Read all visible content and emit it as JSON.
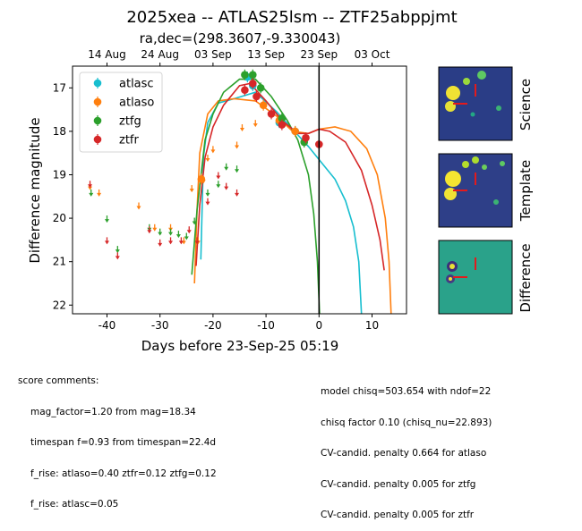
{
  "title": "2025xea -- ATLAS25lsm -- ZTF25abppjmt",
  "top_axis_label": "ra,dec=(298.3607,-9.330043)",
  "top_ticks": [
    {
      "label": "14 Aug",
      "x": -40
    },
    {
      "label": "24 Aug",
      "x": -30
    },
    {
      "label": "03 Sep",
      "x": -20
    },
    {
      "label": "13 Sep",
      "x": -10
    },
    {
      "label": "23 Sep",
      "x": 0
    },
    {
      "label": "03 Oct",
      "x": 10
    }
  ],
  "stamp_labels": [
    "Science",
    "Template",
    "Difference"
  ],
  "comments_left": [
    "score comments:",
    "mag_factor=1.20 from mag=18.34",
    "timespan f=0.93 from timespan=22.4d",
    "f_rise: atlaso=0.40 ztfr=0.12 ztfg=0.12",
    "f_rise: atlasc=0.05"
  ],
  "comments_right": [
    "model chisq=503.654 with ndof=22",
    "chisq factor 0.10 (chisq_nu=22.893)",
    "CV-candid. penalty 0.664 for atlaso",
    "CV-candid. penalty 0.005 for ztfg",
    "CV-candid. penalty 0.005 for ztfr"
  ],
  "chart_data": {
    "type": "scatter",
    "xlabel": "Days before 23-Sep-25 05:19",
    "ylabel": "Difference magnitude",
    "xlim": [
      -46.5,
      16.5
    ],
    "ylim": [
      22.2,
      16.5
    ],
    "xticks": [
      -40,
      -30,
      -20,
      -10,
      0,
      10
    ],
    "yticks": [
      17,
      18,
      19,
      20,
      21,
      22
    ],
    "vline_x": 0,
    "legend_position": "upper-left",
    "series": [
      {
        "name": "atlasc",
        "color": "#17becf",
        "points": [
          [
            -13.5,
            16.75
          ],
          [
            -12.5,
            16.95
          ],
          [
            -7.5,
            17.8
          ],
          [
            -4.5,
            18.0
          ]
        ],
        "limits": [],
        "model": [
          [
            -22.3,
            20.95
          ],
          [
            -21.8,
            18.6
          ],
          [
            -21,
            17.8
          ],
          [
            -19,
            17.35
          ],
          [
            -16,
            17.25
          ],
          [
            -12,
            17.1
          ],
          [
            -8,
            17.55
          ],
          [
            -5,
            17.95
          ],
          [
            -2,
            18.35
          ],
          [
            0,
            18.65
          ],
          [
            3,
            19.1
          ],
          [
            5,
            19.6
          ],
          [
            6.5,
            20.2
          ],
          [
            7.5,
            21.0
          ],
          [
            8,
            22.2
          ]
        ]
      },
      {
        "name": "atlaso",
        "color": "#ff7f0e",
        "points": [
          [
            -22.2,
            19.1
          ],
          [
            -10.5,
            17.4
          ],
          [
            -7.5,
            17.75
          ],
          [
            -4.5,
            18.0
          ]
        ],
        "limits": [
          [
            -43.2,
            19.25
          ],
          [
            -41.5,
            19.4
          ],
          [
            -34,
            19.7
          ],
          [
            -31,
            20.2
          ],
          [
            -28,
            20.2
          ],
          [
            -25.5,
            20.5
          ],
          [
            -24,
            19.3
          ],
          [
            -22.8,
            20.5
          ],
          [
            -21.8,
            19.1
          ],
          [
            -21,
            18.6
          ],
          [
            -20,
            18.4
          ],
          [
            -15.5,
            18.3
          ],
          [
            -14.5,
            17.9
          ],
          [
            -12,
            17.8
          ]
        ],
        "model": [
          [
            -23.5,
            21.5
          ],
          [
            -23,
            19.8
          ],
          [
            -22.5,
            18.5
          ],
          [
            -21,
            17.6
          ],
          [
            -19,
            17.3
          ],
          [
            -16,
            17.25
          ],
          [
            -12,
            17.3
          ],
          [
            -8,
            17.65
          ],
          [
            -5,
            18.0
          ],
          [
            -2,
            18.05
          ],
          [
            0,
            17.95
          ],
          [
            3,
            17.9
          ],
          [
            6,
            18.0
          ],
          [
            9,
            18.4
          ],
          [
            11,
            19.0
          ],
          [
            12.5,
            20.0
          ],
          [
            13.2,
            21.0
          ],
          [
            13.6,
            22.2
          ]
        ]
      },
      {
        "name": "ztfg",
        "color": "#2ca02c",
        "points": [
          [
            -14,
            16.7
          ],
          [
            -12.5,
            16.7
          ],
          [
            -11,
            17.0
          ],
          [
            -7,
            17.7
          ],
          [
            -2.8,
            18.25
          ]
        ],
        "limits": [
          [
            -43,
            19.4
          ],
          [
            -40,
            20.0
          ],
          [
            -38,
            20.7
          ],
          [
            -32,
            20.2
          ],
          [
            -30,
            20.3
          ],
          [
            -28,
            20.3
          ],
          [
            -26.5,
            20.35
          ],
          [
            -25,
            20.4
          ],
          [
            -23.5,
            20.05
          ],
          [
            -21,
            19.4
          ],
          [
            -19,
            19.2
          ],
          [
            -17.5,
            18.8
          ],
          [
            -15.5,
            18.85
          ]
        ],
        "model": [
          [
            -24,
            21.3
          ],
          [
            -23,
            19.8
          ],
          [
            -21.5,
            18.2
          ],
          [
            -20,
            17.6
          ],
          [
            -18,
            17.1
          ],
          [
            -15,
            16.8
          ],
          [
            -12,
            16.8
          ],
          [
            -9,
            17.2
          ],
          [
            -6,
            17.75
          ],
          [
            -4,
            18.2
          ],
          [
            -2,
            19.0
          ],
          [
            -1,
            19.9
          ],
          [
            -0.3,
            21.0
          ],
          [
            0.1,
            22.2
          ]
        ]
      },
      {
        "name": "ztfr",
        "color": "#d62728",
        "points": [
          [
            -14,
            17.05
          ],
          [
            -12.5,
            16.9
          ],
          [
            -11.8,
            17.2
          ],
          [
            -9,
            17.6
          ],
          [
            -7,
            17.85
          ],
          [
            -2.5,
            18.15
          ],
          [
            0,
            18.3
          ]
        ],
        "limits": [
          [
            -43.2,
            19.2
          ],
          [
            -40,
            20.5
          ],
          [
            -38,
            20.85
          ],
          [
            -32,
            20.25
          ],
          [
            -30,
            20.55
          ],
          [
            -28,
            20.5
          ],
          [
            -26,
            20.5
          ],
          [
            -24.5,
            20.25
          ],
          [
            -23,
            20.5
          ],
          [
            -21,
            19.6
          ],
          [
            -19,
            19.0
          ],
          [
            -17.5,
            19.25
          ],
          [
            -15.5,
            19.4
          ]
        ],
        "model": [
          [
            -23.2,
            21.1
          ],
          [
            -22.5,
            19.7
          ],
          [
            -21.5,
            18.6
          ],
          [
            -20,
            17.9
          ],
          [
            -18,
            17.4
          ],
          [
            -15,
            16.95
          ],
          [
            -13,
            16.9
          ],
          [
            -10,
            17.3
          ],
          [
            -7,
            17.75
          ],
          [
            -4,
            18.05
          ],
          [
            -2,
            18.05
          ],
          [
            0,
            17.95
          ],
          [
            2,
            18.0
          ],
          [
            5,
            18.25
          ],
          [
            8,
            18.9
          ],
          [
            10,
            19.7
          ],
          [
            11.5,
            20.5
          ],
          [
            12.3,
            21.2
          ]
        ]
      }
    ]
  }
}
